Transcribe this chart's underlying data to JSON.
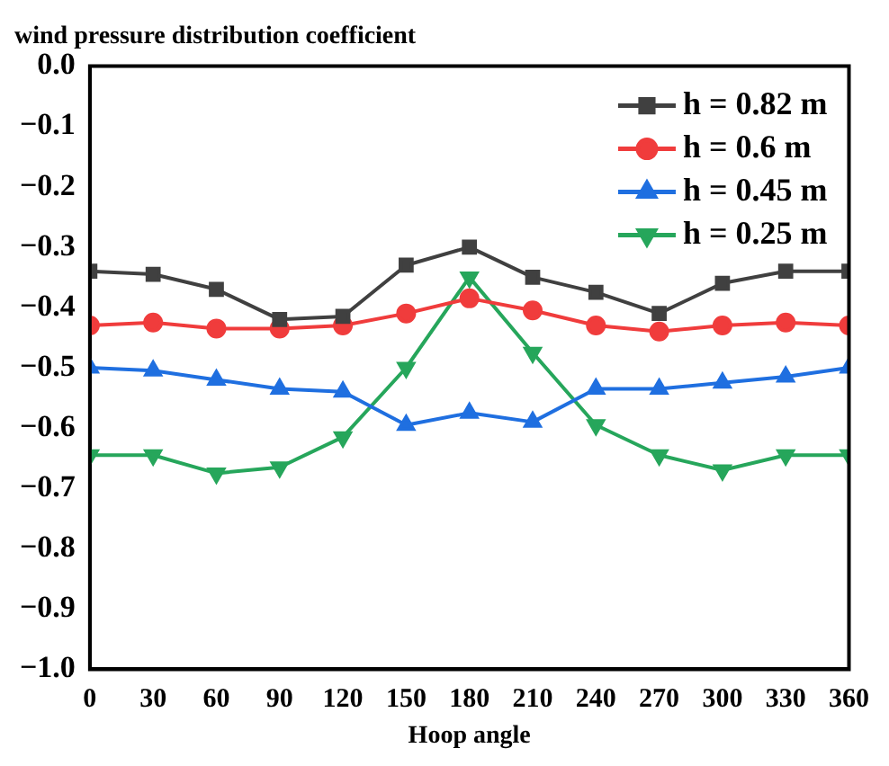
{
  "chart_data": {
    "type": "line",
    "title": "wind pressure distribution coefficient",
    "xlabel": "Hoop angle",
    "x": [
      0,
      30,
      60,
      90,
      120,
      150,
      180,
      210,
      240,
      270,
      300,
      330,
      360
    ],
    "series": [
      {
        "name": "h = 0.82 m",
        "color": "#404040",
        "marker": "square",
        "values": [
          -0.34,
          -0.345,
          -0.37,
          -0.42,
          -0.415,
          -0.33,
          -0.3,
          -0.35,
          -0.375,
          -0.41,
          -0.36,
          -0.34,
          -0.34
        ]
      },
      {
        "name": "h = 0.6 m",
        "color": "#f03c3c",
        "marker": "circle",
        "values": [
          -0.43,
          -0.425,
          -0.435,
          -0.435,
          -0.43,
          -0.41,
          -0.385,
          -0.405,
          -0.43,
          -0.44,
          -0.43,
          -0.425,
          -0.43
        ]
      },
      {
        "name": "h = 0.45 m",
        "color": "#1f6fe0",
        "marker": "triangle",
        "values": [
          -0.5,
          -0.505,
          -0.52,
          -0.535,
          -0.54,
          -0.595,
          -0.575,
          -0.59,
          -0.535,
          -0.535,
          -0.525,
          -0.515,
          -0.5
        ]
      },
      {
        "name": "h = 0.25 m",
        "color": "#26a65b",
        "marker": "triangle-down",
        "values": [
          -0.645,
          -0.645,
          -0.675,
          -0.665,
          -0.615,
          -0.5,
          -0.35,
          -0.475,
          -0.595,
          -0.645,
          -0.67,
          -0.645,
          -0.645
        ]
      }
    ],
    "xlim": [
      0,
      360
    ],
    "xticks": [
      0,
      30,
      60,
      90,
      120,
      150,
      180,
      210,
      240,
      270,
      300,
      330,
      360
    ],
    "ylim": [
      -1,
      0
    ],
    "yticks": [
      {
        "value": -1,
        "label": "−1.0"
      },
      {
        "value": -0.9,
        "label": "−0.9"
      },
      {
        "value": -0.8,
        "label": "−0.8"
      },
      {
        "value": -0.7,
        "label": "−0.7"
      },
      {
        "value": -0.6,
        "label": "−0.6"
      },
      {
        "value": -0.5,
        "label": "−0.5"
      },
      {
        "value": -0.4,
        "label": "−0.4"
      },
      {
        "value": -0.3,
        "label": "−0.3"
      },
      {
        "value": -0.2,
        "label": "−0.2"
      },
      {
        "value": -0.1,
        "label": "−0.1"
      },
      {
        "value": 0,
        "label": "0.0"
      }
    ],
    "grid": false,
    "legend": "top right",
    "line_style": "solid"
  }
}
